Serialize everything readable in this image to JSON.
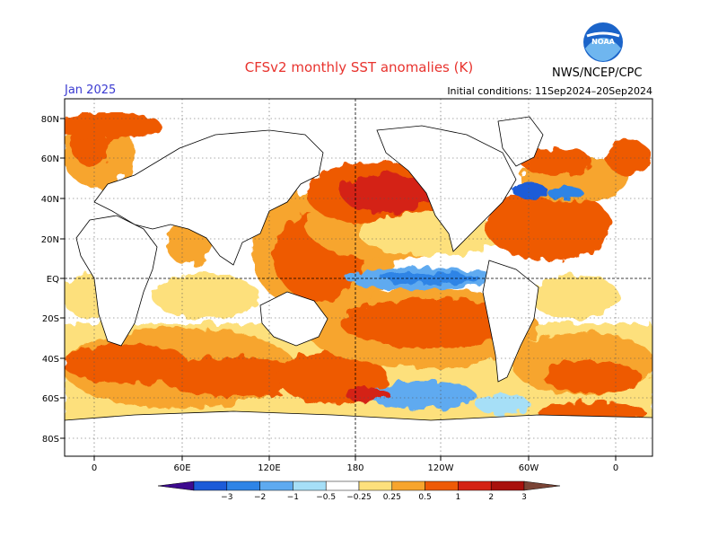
{
  "header": {
    "title": "CFSv2 monthly SST anomalies (K)",
    "month": "Jan 2025",
    "initial_conditions": "Initial conditions: 11Sep2024–20Sep2024",
    "agency": "NWS/NCEP/CPC",
    "logo_text": "NOAA"
  },
  "map": {
    "lat_labels": [
      "80N",
      "60N",
      "40N",
      "20N",
      "EQ",
      "20S",
      "40S",
      "60S",
      "80S"
    ],
    "lon_labels": [
      "0",
      "60E",
      "120E",
      "180",
      "120W",
      "60W",
      "0"
    ]
  },
  "colorbar": {
    "ticks": [
      "−3",
      "−2",
      "−1",
      "−0.5",
      "−0.25",
      "0.25",
      "0.5",
      "1",
      "2",
      "3"
    ],
    "colors": [
      "#3d0a8f",
      "#1c5bd8",
      "#2e84e6",
      "#5eaaf0",
      "#a6dff7",
      "#ffffff",
      "#fde07c",
      "#f7a52d",
      "#ee5a06",
      "#d42213",
      "#a8110d",
      "#7a4436"
    ]
  }
}
